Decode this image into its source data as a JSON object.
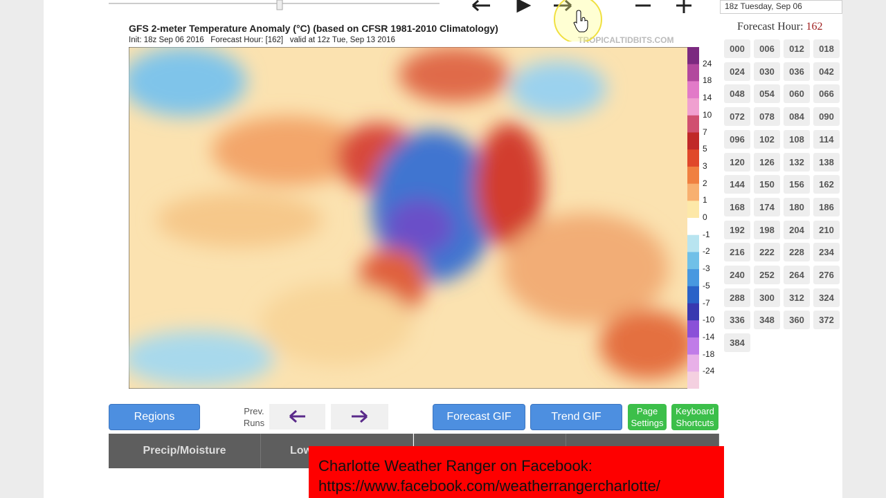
{
  "header": {
    "run_select": "18z Tuesday, Sep 06",
    "forecast_hour_label": "Forecast Hour:",
    "forecast_hour": "162"
  },
  "map": {
    "title": "GFS 2-meter Temperature Anomaly (°C) (based on CFSR 1981-2010 Climatology)",
    "subtitle": "Init: 18z Sep 06 2016   Forecast Hour: [162]   valid at 12z Tue, Sep 13 2016",
    "watermark": "TROPICALTIDBITS.COM",
    "colorbar": [
      "24",
      "18",
      "14",
      "10",
      "7",
      "5",
      "3",
      "2",
      "1",
      "0",
      "-1",
      "-2",
      "-3",
      "-5",
      "-7",
      "-10",
      "-14",
      "-18",
      "-24"
    ]
  },
  "hours": [
    "000",
    "006",
    "012",
    "018",
    "024",
    "030",
    "036",
    "042",
    "048",
    "054",
    "060",
    "066",
    "072",
    "078",
    "084",
    "090",
    "096",
    "102",
    "108",
    "114",
    "120",
    "126",
    "132",
    "138",
    "144",
    "150",
    "156",
    "162",
    "168",
    "174",
    "180",
    "186",
    "192",
    "198",
    "204",
    "210",
    "216",
    "222",
    "228",
    "234",
    "240",
    "252",
    "264",
    "276",
    "288",
    "300",
    "312",
    "324",
    "336",
    "348",
    "360",
    "372",
    "384"
  ],
  "controls": {
    "regions": "Regions",
    "prev_runs": "Prev. Runs",
    "forecast_gif": "Forecast GIF",
    "trend_gif": "Trend GIF",
    "page_settings": "Page Settings",
    "keyboard_shortcuts": "Keyboard Shortcuts"
  },
  "tabs": [
    "Precip/Moisture",
    "Low"
  ],
  "overlay": {
    "line1": "Charlotte Weather Ranger on Facebook:",
    "line2": "https://www.facebook.com/weatherrangercharlotte/"
  }
}
